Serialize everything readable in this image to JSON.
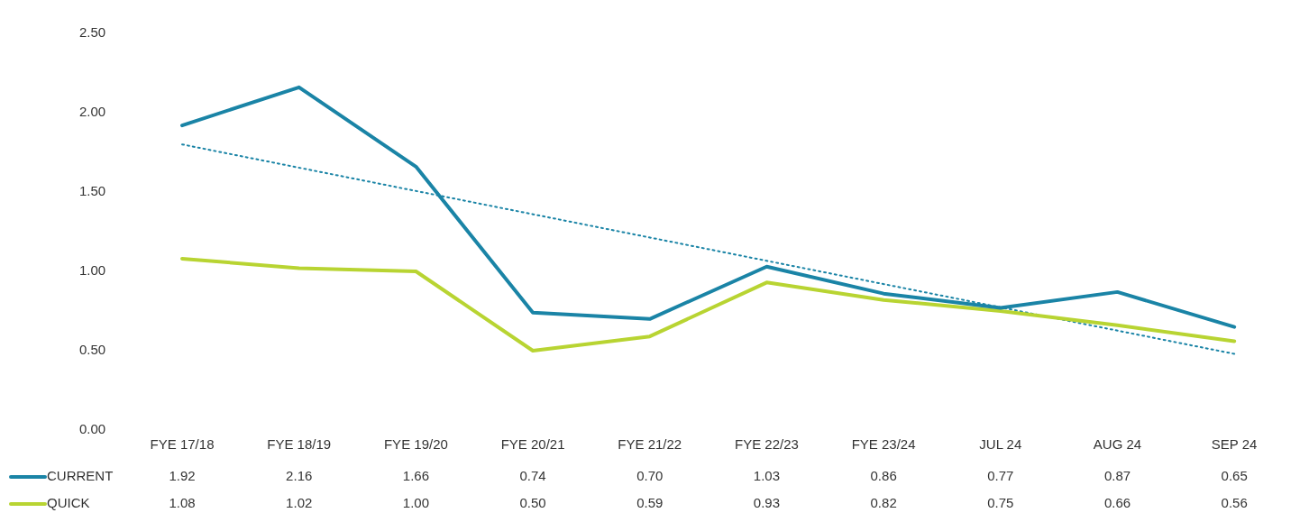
{
  "chart_data": {
    "type": "line",
    "categories": [
      "FYE 17/18",
      "FYE 18/19",
      "FYE 19/20",
      "FYE 20/21",
      "FYE 21/22",
      "FYE 22/23",
      "FYE 23/24",
      "JUL 24",
      "AUG 24",
      "SEP 24"
    ],
    "series": [
      {
        "name": "CURRENT",
        "color": "#1a84a6",
        "values": [
          1.92,
          2.16,
          1.66,
          0.74,
          0.7,
          1.03,
          0.86,
          0.77,
          0.87,
          0.65
        ],
        "value_labels": [
          "1.92",
          "2.16",
          "1.66",
          "0.74",
          "0.70",
          "1.03",
          "0.86",
          "0.77",
          "0.87",
          "0.65"
        ]
      },
      {
        "name": "QUICK",
        "color": "#b8d432",
        "values": [
          1.08,
          1.02,
          1.0,
          0.5,
          0.59,
          0.93,
          0.82,
          0.75,
          0.66,
          0.56
        ],
        "value_labels": [
          "1.08",
          "1.02",
          "1.00",
          "0.50",
          "0.59",
          "0.93",
          "0.82",
          "0.75",
          "0.66",
          "0.56"
        ]
      },
      {
        "type": "line",
        "color": "#1a84a6",
        "line_style": "dotted",
        "values": [
          1.8,
          null,
          null,
          null,
          null,
          null,
          null,
          null,
          null,
          0.48
        ]
      }
    ],
    "ylim": [
      0,
      2.5
    ],
    "yticks": [
      {
        "value": 0,
        "label": "0.00"
      },
      {
        "value": 0.5,
        "label": "0.50"
      },
      {
        "value": 1,
        "label": "1.00"
      },
      {
        "value": 1.5,
        "label": "1.50"
      },
      {
        "value": 2,
        "label": "2.00"
      },
      {
        "value": 2.5,
        "label": "2.50"
      }
    ],
    "grid": false,
    "legend": "bottom left",
    "marker": "none"
  }
}
